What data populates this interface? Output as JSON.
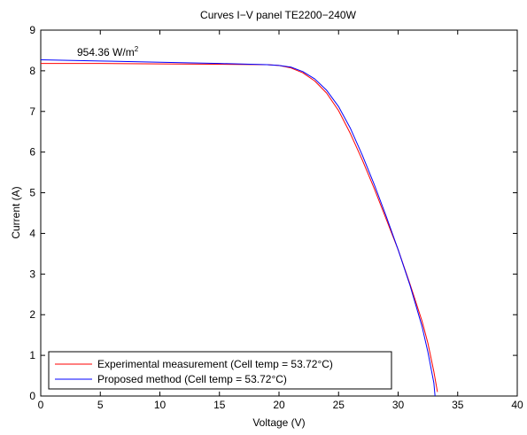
{
  "chart_data": {
    "type": "line",
    "title": "Curves I−V panel TE2200−240W",
    "xlabel": "Voltage (V)",
    "ylabel": "Current (A)",
    "xlim": [
      0,
      40
    ],
    "ylim": [
      0,
      9
    ],
    "xticks": [
      "0",
      "5",
      "10",
      "15",
      "20",
      "25",
      "30",
      "35",
      "40"
    ],
    "yticks": [
      "0",
      "1",
      "2",
      "3",
      "4",
      "5",
      "6",
      "7",
      "8",
      "9"
    ],
    "grid": false,
    "legend_position": "bottom-left",
    "annotation": {
      "text": "954.36 W/m",
      "superscript": "2",
      "x": 3,
      "y": 8.4
    },
    "series": [
      {
        "name": "Experimental measurement (Cell temp = 53.72°C)",
        "color": "#ff0000",
        "points": [
          [
            0,
            8.18
          ],
          [
            5,
            8.18
          ],
          [
            10,
            8.17
          ],
          [
            15,
            8.16
          ],
          [
            19,
            8.15
          ],
          [
            20,
            8.13
          ],
          [
            21,
            8.07
          ],
          [
            22,
            7.95
          ],
          [
            23,
            7.75
          ],
          [
            24,
            7.45
          ],
          [
            25,
            7.02
          ],
          [
            26,
            6.45
          ],
          [
            27,
            5.8
          ],
          [
            28,
            5.1
          ],
          [
            29,
            4.35
          ],
          [
            30,
            3.6
          ],
          [
            31,
            2.75
          ],
          [
            32,
            1.85
          ],
          [
            32.5,
            1.3
          ],
          [
            33,
            0.6
          ],
          [
            33.3,
            0.1
          ]
        ]
      },
      {
        "name": "Proposed method (Cell temp = 53.72°C)",
        "color": "#0000ff",
        "points": [
          [
            0,
            8.27
          ],
          [
            5,
            8.24
          ],
          [
            10,
            8.21
          ],
          [
            15,
            8.18
          ],
          [
            19,
            8.15
          ],
          [
            20,
            8.13
          ],
          [
            21,
            8.09
          ],
          [
            22,
            7.98
          ],
          [
            23,
            7.8
          ],
          [
            24,
            7.52
          ],
          [
            25,
            7.12
          ],
          [
            26,
            6.58
          ],
          [
            27,
            5.92
          ],
          [
            28,
            5.2
          ],
          [
            29,
            4.42
          ],
          [
            30,
            3.6
          ],
          [
            31,
            2.72
          ],
          [
            32,
            1.72
          ],
          [
            32.5,
            1.08
          ],
          [
            33,
            0.32
          ],
          [
            33.1,
            0.0
          ]
        ]
      }
    ]
  }
}
